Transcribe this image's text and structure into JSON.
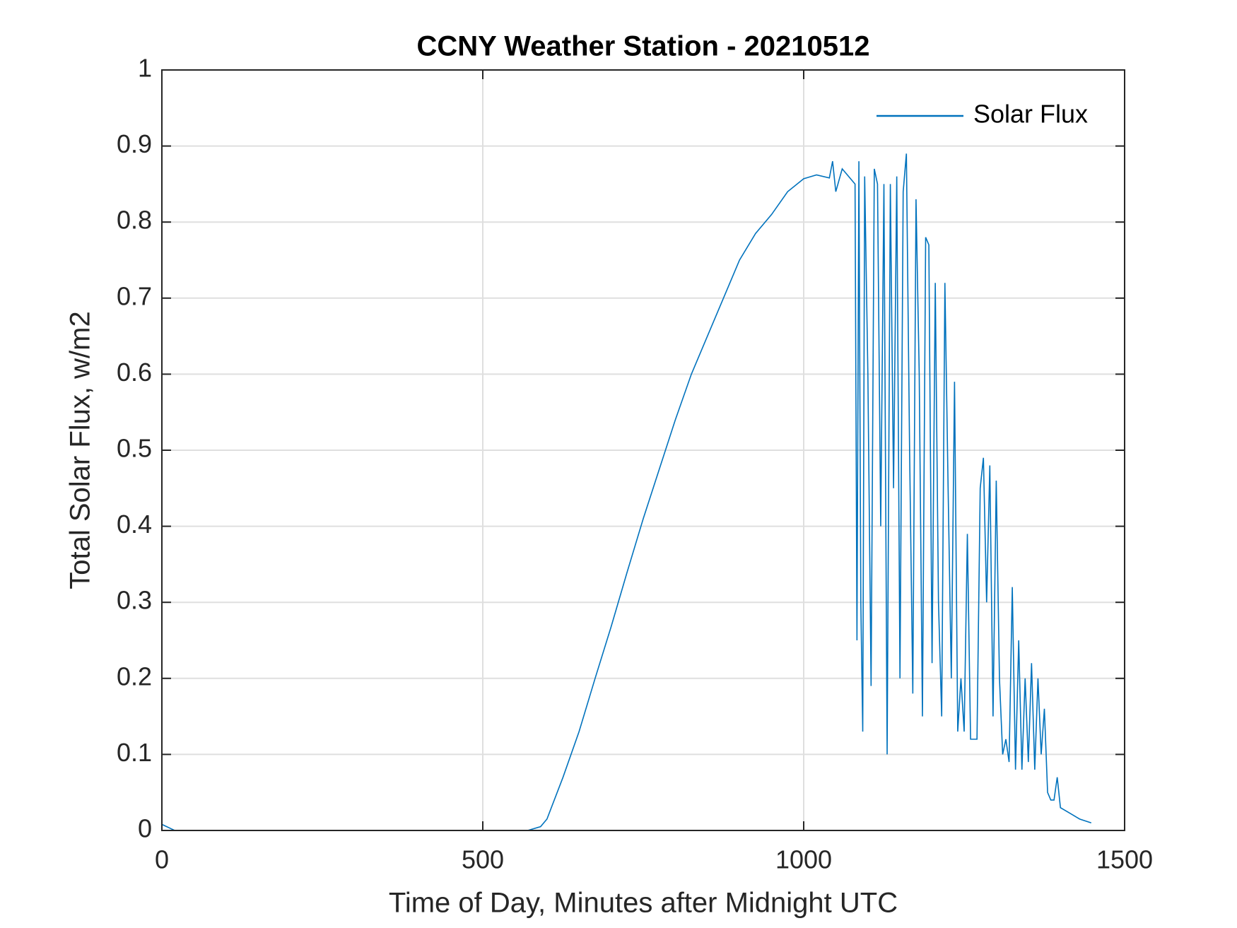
{
  "chart_data": {
    "type": "line",
    "title": "CCNY Weather Station - 20210512",
    "xlabel": "Time of Day, Minutes after Midnight UTC",
    "ylabel": "Total Solar Flux, w/m2",
    "x": [
      0,
      20,
      100,
      300,
      500,
      570,
      590,
      600,
      625,
      650,
      675,
      700,
      725,
      750,
      775,
      800,
      825,
      850,
      875,
      900,
      925,
      950,
      975,
      1000,
      1020,
      1040,
      1045,
      1050,
      1060,
      1070,
      1080,
      1083,
      1086,
      1089,
      1092,
      1095,
      1100,
      1105,
      1110,
      1115,
      1120,
      1125,
      1130,
      1135,
      1140,
      1145,
      1150,
      1155,
      1160,
      1165,
      1170,
      1175,
      1180,
      1185,
      1190,
      1195,
      1200,
      1205,
      1210,
      1215,
      1220,
      1225,
      1230,
      1235,
      1240,
      1245,
      1250,
      1255,
      1260,
      1265,
      1270,
      1275,
      1280,
      1285,
      1290,
      1295,
      1300,
      1305,
      1310,
      1315,
      1320,
      1325,
      1330,
      1335,
      1340,
      1345,
      1350,
      1355,
      1360,
      1365,
      1370,
      1375,
      1380,
      1385,
      1390,
      1395,
      1400,
      1410,
      1420,
      1430,
      1448
    ],
    "series": [
      {
        "name": "Solar Flux",
        "color": "#0072bd",
        "values": [
          0.008,
          0,
          0,
          0,
          0,
          0,
          0.005,
          0.015,
          0.07,
          0.13,
          0.2,
          0.268,
          0.34,
          0.41,
          0.475,
          0.54,
          0.6,
          0.65,
          0.7,
          0.75,
          0.785,
          0.81,
          0.84,
          0.857,
          0.862,
          0.858,
          0.88,
          0.84,
          0.87,
          0.86,
          0.85,
          0.25,
          0.88,
          0.3,
          0.13,
          0.86,
          0.6,
          0.19,
          0.87,
          0.85,
          0.4,
          0.85,
          0.1,
          0.85,
          0.45,
          0.86,
          0.2,
          0.84,
          0.89,
          0.5,
          0.18,
          0.83,
          0.6,
          0.15,
          0.78,
          0.77,
          0.22,
          0.72,
          0.3,
          0.15,
          0.72,
          0.45,
          0.2,
          0.59,
          0.13,
          0.2,
          0.13,
          0.39,
          0.12,
          0.12,
          0.12,
          0.45,
          0.49,
          0.3,
          0.48,
          0.15,
          0.46,
          0.2,
          0.1,
          0.12,
          0.09,
          0.32,
          0.08,
          0.25,
          0.08,
          0.2,
          0.09,
          0.22,
          0.08,
          0.2,
          0.1,
          0.16,
          0.05,
          0.04,
          0.04,
          0.07,
          0.03,
          0.025,
          0.02,
          0.015,
          0.01
        ]
      }
    ],
    "xlim": [
      0,
      1500
    ],
    "xticks": [
      0,
      500,
      1000,
      1500
    ],
    "ylim": [
      0,
      1
    ],
    "yticks": [
      0,
      0.1,
      0.2,
      0.3,
      0.4,
      0.5,
      0.6,
      0.7,
      0.8,
      0.9,
      1
    ],
    "grid": true,
    "legend": "top-right"
  }
}
